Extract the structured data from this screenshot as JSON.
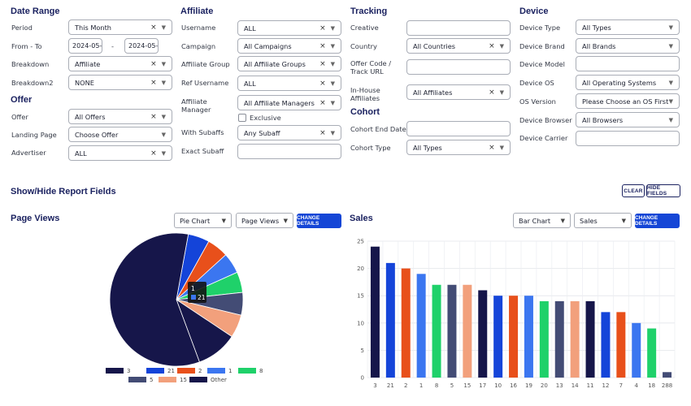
{
  "date_range": {
    "title": "Date Range",
    "period": {
      "label": "Period",
      "value": "This Month"
    },
    "from_to": {
      "label": "From - To",
      "from": "2024-05-",
      "sep": "-",
      "to": "2024-05-"
    },
    "breakdown": {
      "label": "Breakdown",
      "value": "Affiliate"
    },
    "breakdown2": {
      "label": "Breakdown2",
      "value": "NONE"
    }
  },
  "offer": {
    "title": "Offer",
    "offer": {
      "label": "Offer",
      "value": "All Offers"
    },
    "landing_page": {
      "label": "Landing Page",
      "value": "Choose Offer"
    },
    "advertiser": {
      "label": "Advertiser",
      "value": "ALL"
    }
  },
  "affiliate": {
    "title": "Affiliate",
    "username": {
      "label": "Username",
      "value": "ALL"
    },
    "campaign": {
      "label": "Campaign",
      "value": "All Campaigns"
    },
    "affiliate_group": {
      "label": "Affiliate Group",
      "value": "All Affiliate Groups"
    },
    "ref_username": {
      "label": "Ref Username",
      "value": "ALL"
    },
    "affiliate_manager": {
      "label": "Affiliate Manager",
      "value": "All Affiliate Managers"
    },
    "exclusive": {
      "label": "Exclusive"
    },
    "with_subaffs": {
      "label": "With Subaffs",
      "value": "Any Subaff"
    },
    "exact_subaff": {
      "label": "Exact Subaff",
      "value": ""
    }
  },
  "tracking": {
    "title": "Tracking",
    "creative": {
      "label": "Creative",
      "value": ""
    },
    "country": {
      "label": "Country",
      "value": "All Countries"
    },
    "offer_code": {
      "label": "Offer Code / Track URL",
      "value": ""
    },
    "inhouse": {
      "label": "In-House Affiliates",
      "value": "All Affiliates"
    }
  },
  "cohort": {
    "title": "Cohort",
    "end_date": {
      "label": "Cohort End Date",
      "value": ""
    },
    "type": {
      "label": "Cohort Type",
      "value": "All Types"
    }
  },
  "device": {
    "title": "Device",
    "device_type": {
      "label": "Device Type",
      "value": "All Types"
    },
    "device_brand": {
      "label": "Device Brand",
      "value": "All Brands"
    },
    "device_model": {
      "label": "Device Model",
      "value": ""
    },
    "device_os": {
      "label": "Device OS",
      "value": "All Operating Systems"
    },
    "os_version": {
      "label": "OS Version",
      "value": "Please Choose an OS First..."
    },
    "device_browser": {
      "label": "Device Browser",
      "value": "All Browsers"
    },
    "device_carrier": {
      "label": "Device Carrier",
      "value": ""
    }
  },
  "report_fields": {
    "title": "Show/Hide Report Fields",
    "clear_label": "CLEAR",
    "hide_label": "HIDE FIELDS"
  },
  "page_views": {
    "title": "Page Views",
    "chart_type": "Pie Chart",
    "metric": "Page Views",
    "change_label": "CHANGE DETAILS",
    "tooltip": {
      "title": "1",
      "value": "21"
    }
  },
  "sales": {
    "title": "Sales",
    "chart_type": "Bar Chart",
    "metric": "Sales",
    "change_label": "CHANGE DETAILS"
  },
  "chart_data": [
    {
      "type": "pie",
      "title": "Page Views",
      "slices": [
        {
          "label": "3",
          "value": 58.5,
          "color": "#16164a"
        },
        {
          "label": "21",
          "value": 5.2,
          "color": "#1444d9"
        },
        {
          "label": "2",
          "value": 5.2,
          "color": "#e8501b"
        },
        {
          "label": "1",
          "value": 5.0,
          "color": "#3b76f0"
        },
        {
          "label": "8",
          "value": 5.0,
          "color": "#1fd16a"
        },
        {
          "label": "5",
          "value": 5.5,
          "color": "#434c75"
        },
        {
          "label": "15",
          "value": 5.6,
          "color": "#f2a07c"
        },
        {
          "label": "Other",
          "value": 10.0,
          "color": "#16164a"
        }
      ]
    },
    {
      "type": "bar",
      "title": "Sales",
      "categories": [
        "3",
        "21",
        "2",
        "1",
        "8",
        "5",
        "15",
        "17",
        "10",
        "16",
        "19",
        "20",
        "13",
        "14",
        "11",
        "12",
        "7",
        "4",
        "18",
        "288"
      ],
      "values": [
        24,
        21,
        20,
        19,
        17,
        17,
        17,
        16,
        15,
        15,
        15,
        14,
        14,
        14,
        14,
        12,
        12,
        10,
        9,
        1
      ],
      "colors": [
        "#16164a",
        "#1444d9",
        "#e8501b",
        "#3b76f0",
        "#1fd16a",
        "#434c75",
        "#f2a07c",
        "#16164a",
        "#1444d9",
        "#e8501b",
        "#3b76f0",
        "#1fd16a",
        "#434c75",
        "#f2a07c",
        "#16164a",
        "#1444d9",
        "#e8501b",
        "#3b76f0",
        "#1fd16a",
        "#434c75"
      ],
      "ylim": [
        0,
        25
      ],
      "yticks": [
        0,
        5,
        10,
        15,
        20,
        25
      ],
      "grid": true
    }
  ]
}
